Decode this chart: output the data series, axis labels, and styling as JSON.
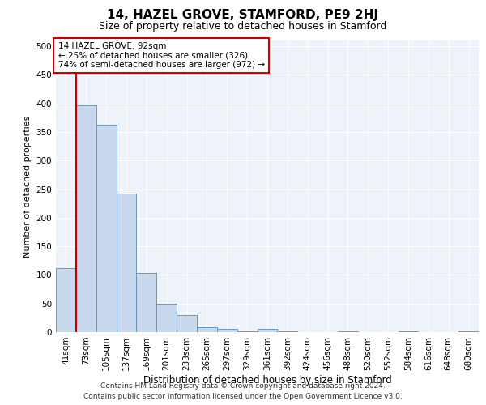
{
  "title": "14, HAZEL GROVE, STAMFORD, PE9 2HJ",
  "subtitle": "Size of property relative to detached houses in Stamford",
  "xlabel": "Distribution of detached houses by size in Stamford",
  "ylabel": "Number of detached properties",
  "footer_line1": "Contains HM Land Registry data © Crown copyright and database right 2024.",
  "footer_line2": "Contains public sector information licensed under the Open Government Licence v3.0.",
  "annotation_line1": "14 HAZEL GROVE: 92sqm",
  "annotation_line2": "← 25% of detached houses are smaller (326)",
  "annotation_line3": "74% of semi-detached houses are larger (972) →",
  "bar_labels": [
    "41sqm",
    "73sqm",
    "105sqm",
    "137sqm",
    "169sqm",
    "201sqm",
    "233sqm",
    "265sqm",
    "297sqm",
    "329sqm",
    "361sqm",
    "392sqm",
    "424sqm",
    "456sqm",
    "488sqm",
    "520sqm",
    "552sqm",
    "584sqm",
    "616sqm",
    "648sqm",
    "680sqm"
  ],
  "bar_values": [
    112,
    397,
    362,
    242,
    103,
    50,
    30,
    9,
    5,
    2,
    5,
    1,
    0,
    0,
    1,
    0,
    0,
    1,
    0,
    0,
    1
  ],
  "bar_color": "#c8d9ee",
  "bar_edge_color": "#5b8db8",
  "ylim": [
    0,
    510
  ],
  "yticks": [
    0,
    50,
    100,
    150,
    200,
    250,
    300,
    350,
    400,
    450,
    500
  ],
  "bg_color": "#eef2f9",
  "grid_color": "#ffffff",
  "annotation_box_color": "#ffffff",
  "annotation_box_edge": "#cc0000",
  "red_line_color": "#cc0000",
  "title_fontsize": 11,
  "subtitle_fontsize": 9,
  "xlabel_fontsize": 8.5,
  "ylabel_fontsize": 8,
  "tick_fontsize": 7.5,
  "annotation_fontsize": 7.5,
  "footer_fontsize": 6.5
}
